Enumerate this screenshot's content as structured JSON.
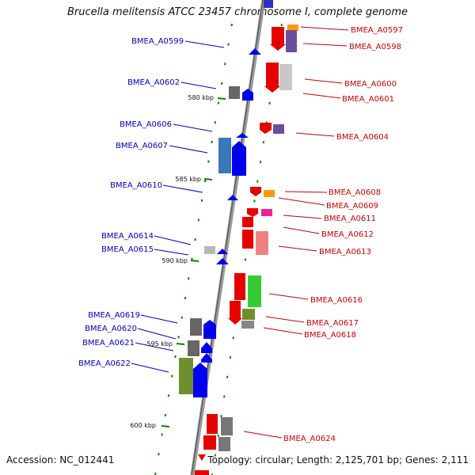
{
  "header": {
    "title": "Brucella melitensis ATCC 23457 chromosome I, complete genome"
  },
  "footer": {
    "accession": "Accession: NC_012441",
    "summary": "Topology: circular; Length: 2,125,701 bp; Genes: 2,111"
  },
  "scale": {
    "ticks": [
      "580 kbp",
      "585 kbp",
      "590 kbp",
      "595 kbp",
      "600 kbp"
    ]
  },
  "colors": {
    "minus_strand_label": "#0000cc",
    "plus_strand_label": "#cc0000",
    "tick_mark": "#008800",
    "backbone": "#888888"
  },
  "genes": {
    "minus": [
      "BMEA_A0599",
      "BMEA_A0602",
      "BMEA_A0606",
      "BMEA_A0607",
      "BMEA_A0610",
      "BMEA_A0614",
      "BMEA_A0615",
      "BMEA_A0619",
      "BMEA_A0620",
      "BMEA_A0621",
      "BMEA_A0622"
    ],
    "plus": [
      "BMEA_A0597",
      "BMEA_A0598",
      "BMEA_A0600",
      "BMEA_A0601",
      "BMEA_A0604",
      "BMEA_A0608",
      "BMEA_A0609",
      "BMEA_A0611",
      "BMEA_A0612",
      "BMEA_A0613",
      "BMEA_A0616",
      "BMEA_A0617",
      "BMEA_A0618",
      "BMEA_A0624"
    ]
  }
}
